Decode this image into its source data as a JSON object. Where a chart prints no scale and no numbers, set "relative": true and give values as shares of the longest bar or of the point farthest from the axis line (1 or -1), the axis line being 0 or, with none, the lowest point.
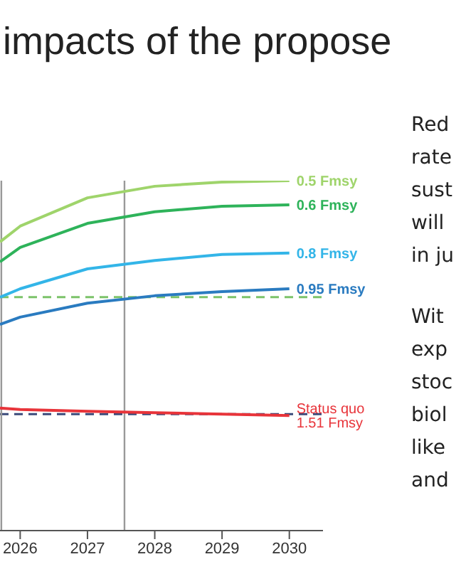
{
  "chart_data": {
    "type": "line",
    "title": "impacts of the propose",
    "relative": true,
    "x": [
      2025.7,
      2026,
      2027,
      2028,
      2029,
      2030
    ],
    "xlim": [
      2025.7,
      2030.5
    ],
    "xticks": [
      2026,
      2027,
      2028,
      2029,
      2030
    ],
    "series": [
      {
        "name": "0.5 Fmsy",
        "color": "#9fd46b",
        "values": [
          0.825,
          0.87,
          0.951,
          0.984,
          0.996,
          1
        ]
      },
      {
        "name": "0.6 Fmsy",
        "color": "#2eb35a",
        "values": [
          0.768,
          0.809,
          0.878,
          0.911,
          0.927,
          0.931
        ]
      },
      {
        "name": "0.8 Fmsy",
        "color": "#33b5e8",
        "values": [
          0.667,
          0.691,
          0.748,
          0.772,
          0.789,
          0.793
        ]
      },
      {
        "name": "0.95 Fmsy",
        "color": "#2a7bc0",
        "values": [
          0.589,
          0.61,
          0.65,
          0.671,
          0.683,
          0.691
        ]
      },
      {
        "name": "Status quo 1.51 Fmsy",
        "color": "#e8343a",
        "values": [
          0.35,
          0.346,
          0.341,
          0.337,
          0.333,
          0.329
        ]
      }
    ],
    "ref_lines": [
      {
        "axis": "y",
        "value": 0.667,
        "color": "#7cc36a",
        "line_style": "dashed"
      },
      {
        "axis": "y",
        "value": 0.333,
        "color": "#3b4a7a",
        "line_style": "dashed"
      },
      {
        "axis": "x",
        "value": 2025.72,
        "color": "#999999",
        "line_style": "solid"
      },
      {
        "axis": "x",
        "value": 2027.55,
        "color": "#999999",
        "line_style": "solid"
      }
    ],
    "annotations": [
      "Red",
      "rate",
      "sust",
      "will",
      "in ju",
      "Wit",
      "exp",
      "stoc",
      "biol",
      "like",
      "and"
    ],
    "grid": false,
    "legend": false,
    "marker": "none",
    "line_style": "solid"
  }
}
